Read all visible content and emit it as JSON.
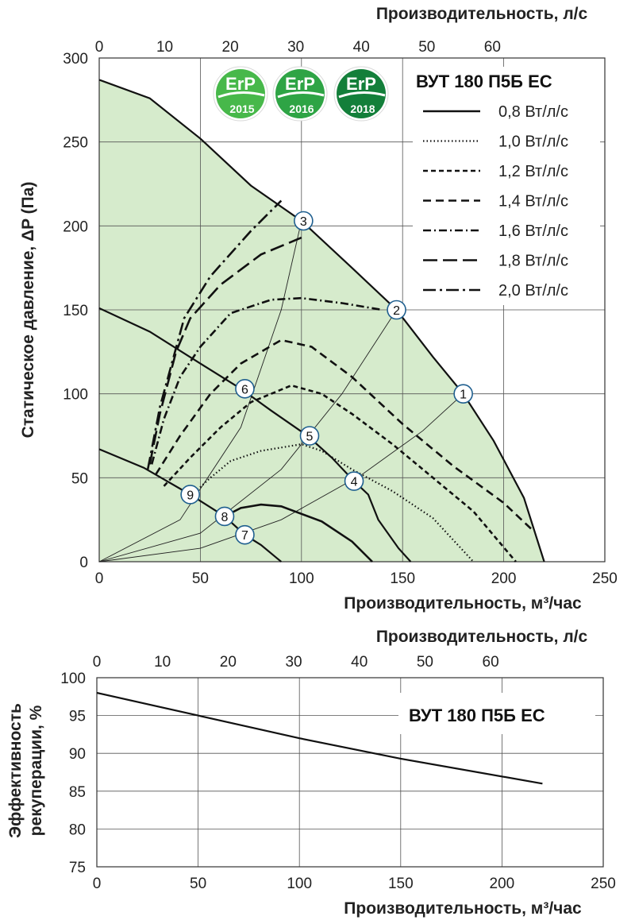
{
  "colors": {
    "fill_area": "#d6ebcc",
    "grid": "#555555",
    "badge_2015": "#47b84a",
    "badge_2016": "#2ea445",
    "badge_2018": "#137f3a",
    "marker_fill": "#ffffff",
    "marker_stroke": "#1f5f8f"
  },
  "badges": [
    {
      "label": "ErP",
      "year": "2015",
      "icon": "erp-2015-icon"
    },
    {
      "label": "ErP",
      "year": "2016",
      "icon": "erp-2016-icon"
    },
    {
      "label": "ErP",
      "year": "2018",
      "icon": "erp-2018-icon"
    }
  ],
  "chart_data": [
    {
      "type": "line",
      "title": "ВУТ 180 П5Б ЕС",
      "xlabel": "Производительность, м³/час",
      "x2label": "Производительность, л/с",
      "ylabel": "Статическое давление, ΔP (Па)",
      "xlim": [
        0,
        250
      ],
      "ylim": [
        0,
        300
      ],
      "xticks": [
        0,
        50,
        100,
        150,
        200,
        250
      ],
      "x2ticks": [
        0,
        10,
        20,
        30,
        40,
        50,
        60
      ],
      "yticks": [
        0,
        50,
        100,
        150,
        200,
        250,
        300
      ],
      "grid": true,
      "legend_position": "top-right",
      "legend": [
        {
          "label": "0,8 Вт/л/с",
          "style": "solid"
        },
        {
          "label": "1,0 Вт/л/с",
          "style": "dotted"
        },
        {
          "label": "1,2 Вт/л/с",
          "style": "short-dash"
        },
        {
          "label": "1,4 Вт/л/с",
          "style": "dash"
        },
        {
          "label": "1,6 Вт/л/с",
          "style": "dash-dot"
        },
        {
          "label": "1,8 Вт/л/с",
          "style": "long-dash"
        },
        {
          "label": "2,0 Вт/л/с",
          "style": "long-dash-dot"
        }
      ],
      "fan_curves": [
        {
          "id": "max",
          "points": [
            [
              0,
              287
            ],
            [
              25,
              276
            ],
            [
              50,
              252
            ],
            [
              75,
              224
            ],
            [
              100,
              203
            ],
            [
              125,
              175
            ],
            [
              147,
              150
            ],
            [
              165,
              122
            ],
            [
              180,
              100
            ],
            [
              195,
              72
            ],
            [
              210,
              38
            ],
            [
              220,
              0
            ]
          ]
        },
        {
          "id": "mid",
          "points": [
            [
              0,
              151
            ],
            [
              25,
              137
            ],
            [
              50,
              118
            ],
            [
              70,
              103
            ],
            [
              85,
              90
            ],
            [
              103,
              75
            ],
            [
              115,
              62
            ],
            [
              126,
              48
            ],
            [
              133,
              40
            ],
            [
              138,
              25
            ],
            [
              148,
              8
            ],
            [
              154,
              0
            ]
          ]
        },
        {
          "id": "low",
          "points": [
            [
              0,
              67
            ],
            [
              22,
              56
            ],
            [
              45,
              40
            ],
            [
              62,
              27
            ],
            [
              72,
              16
            ],
            [
              80,
              10
            ],
            [
              88,
              2
            ],
            [
              90,
              0
            ]
          ]
        }
      ],
      "system_curves": [
        {
          "to": "1",
          "points": [
            [
              0,
              0
            ],
            [
              50,
              8
            ],
            [
              90,
              25
            ],
            [
              130,
              52
            ],
            [
              160,
              78
            ],
            [
              180,
              100
            ]
          ]
        },
        {
          "to": "2",
          "points": [
            [
              0,
              0
            ],
            [
              50,
              17
            ],
            [
              90,
              55
            ],
            [
              120,
              100
            ],
            [
              147,
              150
            ]
          ]
        },
        {
          "to": "3",
          "points": [
            [
              0,
              0
            ],
            [
              40,
              25
            ],
            [
              70,
              80
            ],
            [
              90,
              150
            ],
            [
              100,
              203
            ]
          ]
        }
      ],
      "power_lines": [
        {
          "style": "solid",
          "points": [
            [
              62,
              27
            ],
            [
              70,
              32
            ],
            [
              80,
              34
            ],
            [
              90,
              33
            ],
            [
              110,
              24
            ],
            [
              125,
              12
            ],
            [
              135,
              0
            ]
          ]
        },
        {
          "style": "dotted",
          "points": [
            [
              46,
              40
            ],
            [
              55,
              50
            ],
            [
              65,
              60
            ],
            [
              80,
              66
            ],
            [
              90,
              68
            ],
            [
              100,
              70
            ],
            [
              110,
              66
            ],
            [
              125,
              55
            ],
            [
              145,
              42
            ],
            [
              165,
              26
            ],
            [
              185,
              0
            ]
          ]
        },
        {
          "style": "short-dash",
          "points": [
            [
              32,
              45
            ],
            [
              45,
              62
            ],
            [
              60,
              80
            ],
            [
              75,
              95
            ],
            [
              95,
              105
            ],
            [
              110,
              100
            ],
            [
              125,
              88
            ],
            [
              145,
              70
            ],
            [
              165,
              50
            ],
            [
              185,
              30
            ],
            [
              206,
              0
            ]
          ]
        },
        {
          "style": "dash",
          "points": [
            [
              28,
              52
            ],
            [
              40,
              75
            ],
            [
              55,
              100
            ],
            [
              70,
              118
            ],
            [
              90,
              132
            ],
            [
              105,
              128
            ],
            [
              125,
              110
            ],
            [
              150,
              82
            ],
            [
              175,
              57
            ],
            [
              200,
              35
            ],
            [
              215,
              18
            ]
          ]
        },
        {
          "style": "dash-dot",
          "points": [
            [
              26,
              58
            ],
            [
              32,
              85
            ],
            [
              40,
              110
            ],
            [
              50,
              128
            ],
            [
              65,
              148
            ],
            [
              85,
              156
            ],
            [
              100,
              157
            ],
            [
              120,
              154
            ],
            [
              140,
              150
            ]
          ]
        },
        {
          "style": "long-dash",
          "points": [
            [
              25,
              58
            ],
            [
              30,
              88
            ],
            [
              38,
              125
            ],
            [
              45,
              145
            ],
            [
              60,
              165
            ],
            [
              80,
              183
            ],
            [
              100,
              193
            ]
          ]
        },
        {
          "style": "long-dash-dot",
          "points": [
            [
              24,
              55
            ],
            [
              30,
              92
            ],
            [
              42,
              145
            ],
            [
              55,
              170
            ],
            [
              75,
              197
            ],
            [
              90,
              215
            ]
          ]
        }
      ],
      "markers": [
        {
          "label": "1",
          "x": 180,
          "y": 100
        },
        {
          "label": "2",
          "x": 147,
          "y": 150
        },
        {
          "label": "3",
          "x": 101,
          "y": 203
        },
        {
          "label": "4",
          "x": 126,
          "y": 48
        },
        {
          "label": "5",
          "x": 104,
          "y": 75
        },
        {
          "label": "6",
          "x": 72,
          "y": 103
        },
        {
          "label": "7",
          "x": 72,
          "y": 16
        },
        {
          "label": "8",
          "x": 62,
          "y": 27
        },
        {
          "label": "9",
          "x": 45,
          "y": 40
        }
      ]
    },
    {
      "type": "line",
      "title": "ВУТ 180 П5Б ЕС",
      "xlabel": "Производительность, м³/час",
      "x2label": "Производительность, л/с",
      "ylabel_line1": "Эффективность",
      "ylabel_line2": "рекуперации, %",
      "xlim": [
        0,
        250
      ],
      "ylim": [
        75,
        100
      ],
      "xticks": [
        0,
        50,
        100,
        150,
        200,
        250
      ],
      "x2ticks": [
        0,
        10,
        20,
        30,
        40,
        50,
        60
      ],
      "yticks": [
        75,
        80,
        85,
        90,
        95,
        100
      ],
      "grid": true,
      "series": [
        {
          "points": [
            [
              0,
              98
            ],
            [
              50,
              95
            ],
            [
              100,
              92
            ],
            [
              150,
              89.3
            ],
            [
              220,
              86
            ]
          ]
        }
      ]
    }
  ]
}
